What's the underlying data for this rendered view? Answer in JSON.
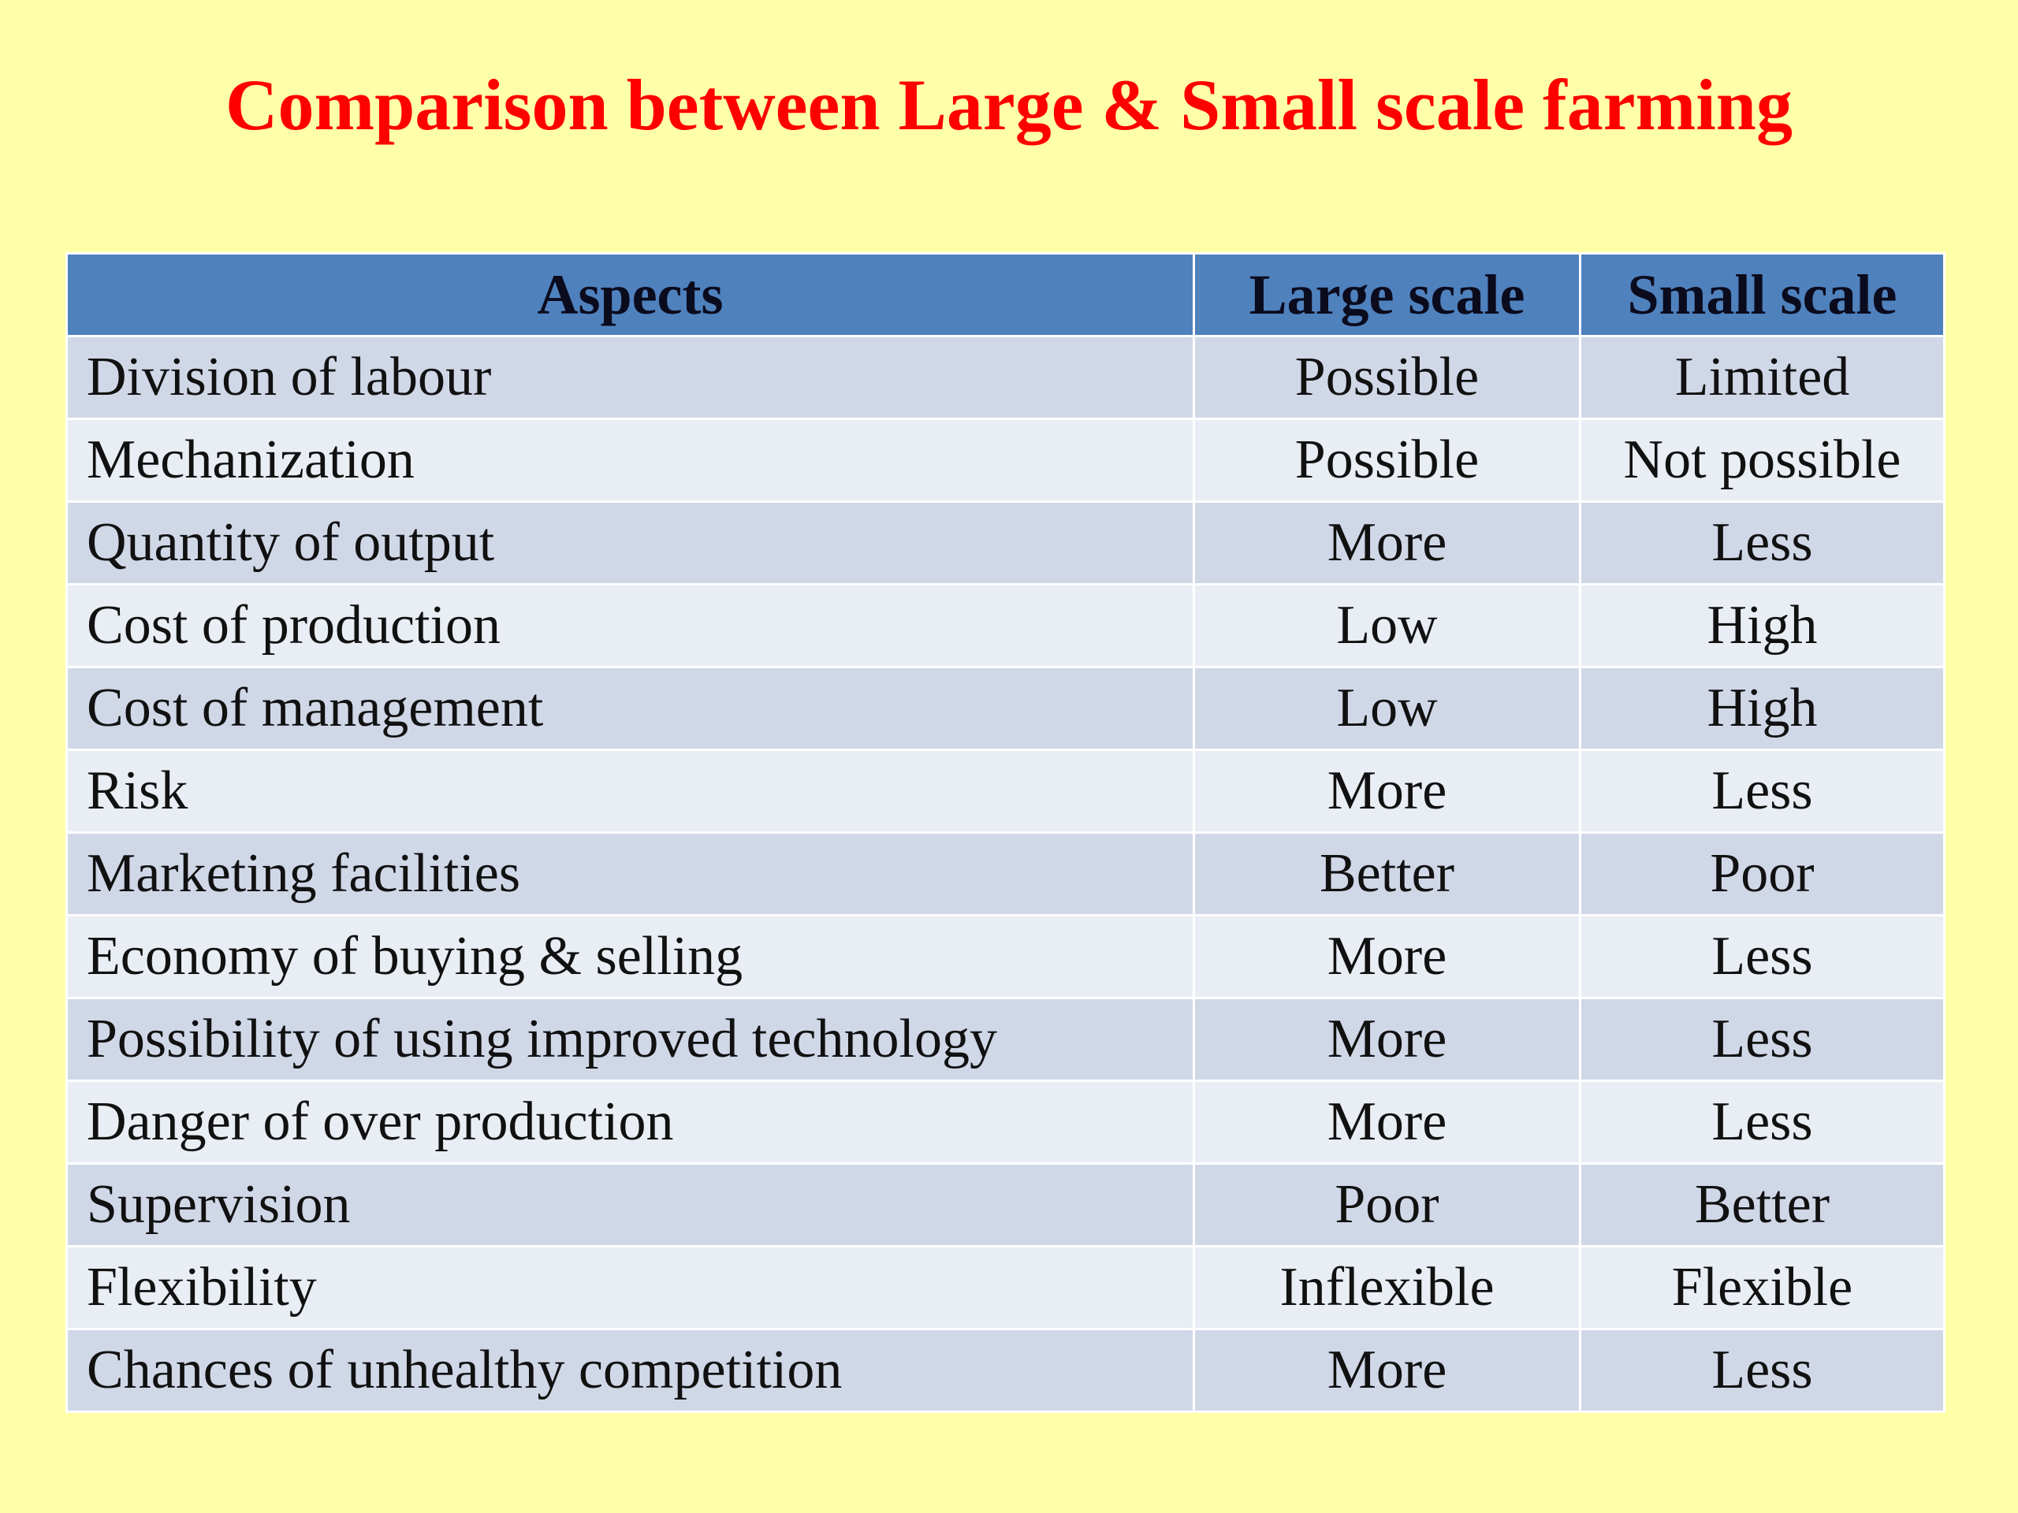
{
  "title": "Comparison between Large & Small scale farming",
  "table": {
    "headers": [
      "Aspects",
      "Large scale",
      "Small scale"
    ],
    "rows": [
      [
        "Division of labour",
        "Possible",
        "Limited"
      ],
      [
        "Mechanization",
        "Possible",
        "Not possible"
      ],
      [
        "Quantity of output",
        "More",
        "Less"
      ],
      [
        "Cost of production",
        "Low",
        "High"
      ],
      [
        "Cost of management",
        "Low",
        "High"
      ],
      [
        "Risk",
        "More",
        "Less"
      ],
      [
        "Marketing facilities",
        "Better",
        "Poor"
      ],
      [
        "Economy of buying & selling",
        "More",
        "Less"
      ],
      [
        "Possibility of using improved technology",
        "More",
        "Less"
      ],
      [
        "Danger of over production",
        "More",
        "Less"
      ],
      [
        "Supervision",
        "Poor",
        "Better"
      ],
      [
        "Flexibility",
        "Inflexible",
        "Flexible"
      ],
      [
        "Chances of unhealthy competition",
        "More",
        "Less"
      ]
    ]
  },
  "colors": {
    "background": "#FFFFA8",
    "title": "#FF0000",
    "header": "#4F81BD",
    "row_odd": "#D0D8E8",
    "row_even": "#E9EDF4"
  }
}
